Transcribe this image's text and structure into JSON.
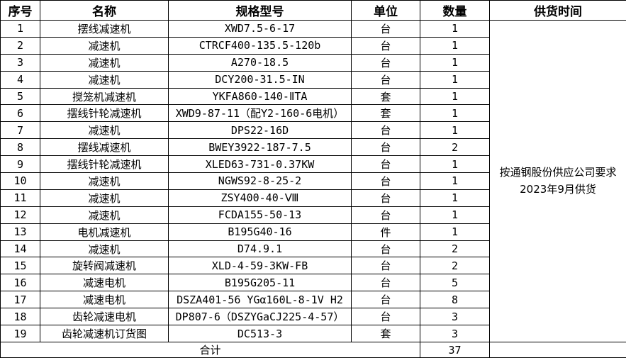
{
  "table": {
    "headers": {
      "index": "序号",
      "name": "名称",
      "spec": "规格型号",
      "unit": "单位",
      "qty": "数量",
      "supply": "供货时间"
    },
    "rows": [
      {
        "index": "1",
        "name": "摆线减速机",
        "spec": "XWD7.5-6-17",
        "unit": "台",
        "qty": "1"
      },
      {
        "index": "2",
        "name": "减速机",
        "spec": "CTRCF400-135.5-120b",
        "unit": "台",
        "qty": "1"
      },
      {
        "index": "3",
        "name": "减速机",
        "spec": "A270-18.5",
        "unit": "台",
        "qty": "1"
      },
      {
        "index": "4",
        "name": "减速机",
        "spec": "DCY200-31.5-IN",
        "unit": "台",
        "qty": "1"
      },
      {
        "index": "5",
        "name": "搅笼机减速机",
        "spec": "YKFA860-140-ⅡTA",
        "unit": "套",
        "qty": "1"
      },
      {
        "index": "6",
        "name": "摆线针轮减速机",
        "spec": "XWD9-87-11（配Y2-160-6电机）",
        "unit": "套",
        "qty": "1"
      },
      {
        "index": "7",
        "name": "减速机",
        "spec": "DPS22-16D",
        "unit": "台",
        "qty": "1"
      },
      {
        "index": "8",
        "name": "摆线减速机",
        "spec": "BWEY3922-187-7.5",
        "unit": "台",
        "qty": "2"
      },
      {
        "index": "9",
        "name": "摆线针轮减速机",
        "spec": "XLED63-731-0.37KW",
        "unit": "台",
        "qty": "1"
      },
      {
        "index": "10",
        "name": "减速机",
        "spec": "NGWS92-8-25-2",
        "unit": "台",
        "qty": "1"
      },
      {
        "index": "11",
        "name": "减速机",
        "spec": "ZSY400-40-Ⅷ",
        "unit": "台",
        "qty": "1"
      },
      {
        "index": "12",
        "name": "减速机",
        "spec": "FCDA155-50-13",
        "unit": "台",
        "qty": "1"
      },
      {
        "index": "13",
        "name": "电机减速机",
        "spec": "B195G40-16",
        "unit": "件",
        "qty": "1"
      },
      {
        "index": "14",
        "name": "减速机",
        "spec": "D74.9.1",
        "unit": "台",
        "qty": "2"
      },
      {
        "index": "15",
        "name": "旋转阀减速机",
        "spec": "XLD-4-59-3KW-FB",
        "unit": "台",
        "qty": "2"
      },
      {
        "index": "16",
        "name": "减速电机",
        "spec": "B195G205-11",
        "unit": "台",
        "qty": "5"
      },
      {
        "index": "17",
        "name": "减速电机",
        "spec": "DSZA401-56 YGα160L-8-1V H2",
        "unit": "台",
        "qty": "8"
      },
      {
        "index": "18",
        "name": "齿轮减速电机",
        "spec": "DP807-6（DSZYGaCJ225-4-57）",
        "unit": "台",
        "qty": "3"
      },
      {
        "index": "19",
        "name": "齿轮减速机订货图",
        "spec": "DC513-3",
        "unit": "套",
        "qty": "3"
      }
    ],
    "supply_note": {
      "line1": "按通钢股份供应公司要求",
      "line2": "2023年9月供货"
    },
    "total": {
      "label": "合计",
      "qty": "37"
    }
  },
  "colors": {
    "border": "#000000",
    "background": "#ffffff",
    "text": "#000000"
  }
}
